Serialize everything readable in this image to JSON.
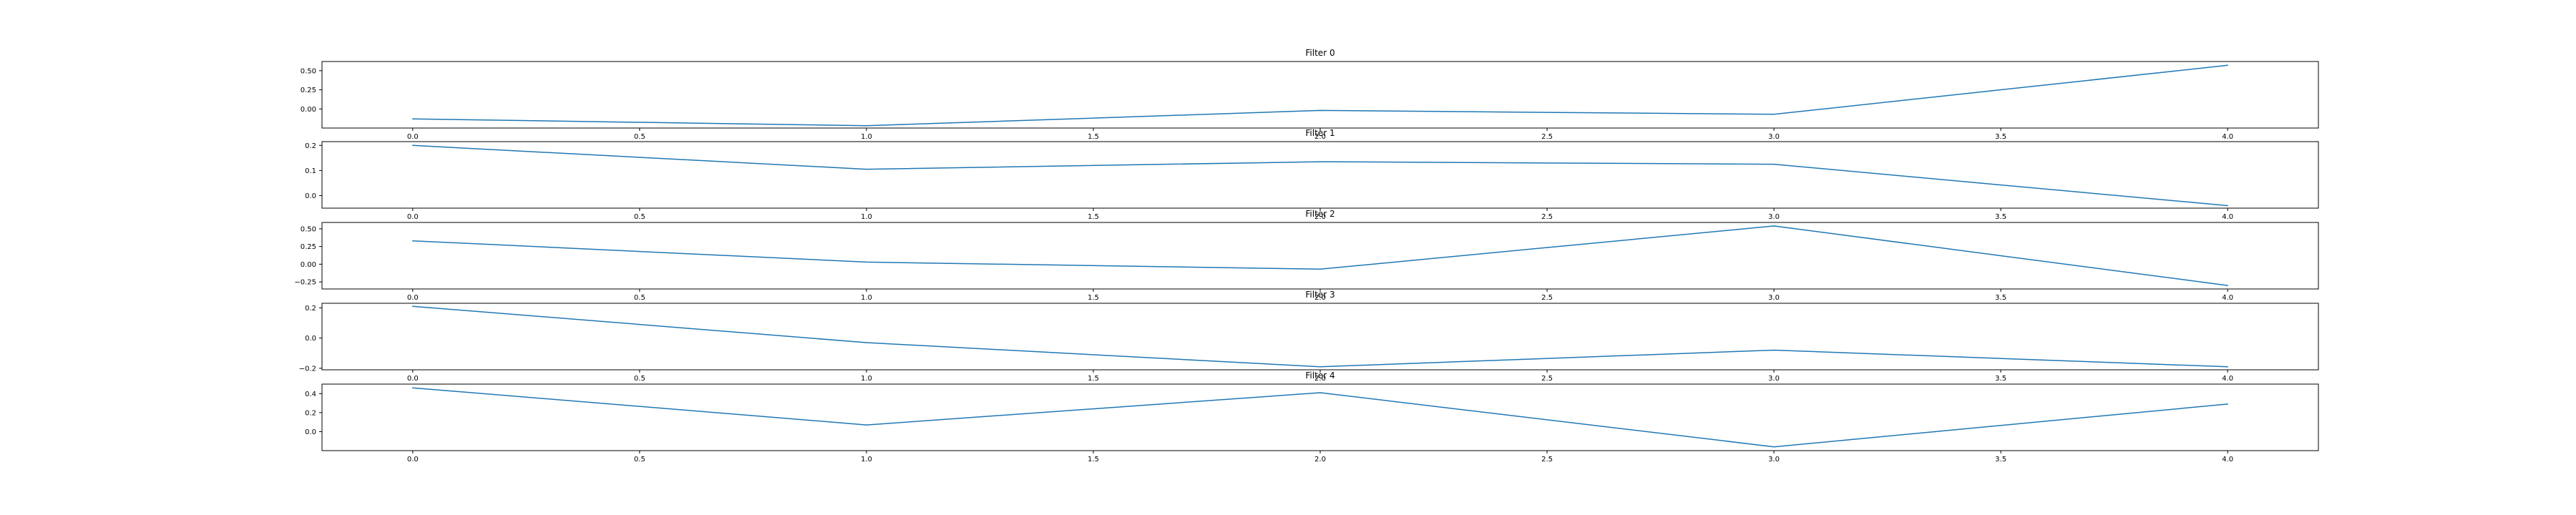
{
  "chart_data": [
    {
      "type": "line",
      "title": "Filter 0",
      "x": [
        0,
        1,
        2,
        3,
        4
      ],
      "series": [
        {
          "values": [
            -0.13,
            -0.22,
            -0.02,
            -0.07,
            0.57
          ]
        }
      ],
      "color": "#1f77b4",
      "xlim": [
        -0.2,
        4.2
      ],
      "ylim": [
        -0.25,
        0.62
      ],
      "xticks": [
        "0.0",
        "0.5",
        "1.0",
        "1.5",
        "2.0",
        "2.5",
        "3.0",
        "3.5",
        "4.0"
      ],
      "yticks": [
        "0.50",
        "0.25",
        "0.00"
      ],
      "grid": false
    },
    {
      "type": "line",
      "title": "Filter 1",
      "x": [
        0,
        1,
        2,
        3,
        4
      ],
      "series": [
        {
          "values": [
            0.2,
            0.105,
            0.135,
            0.125,
            -0.04
          ]
        }
      ],
      "color": "#1f77b4",
      "xlim": [
        -0.2,
        4.2
      ],
      "ylim": [
        -0.05,
        0.215
      ],
      "xticks": [
        "0.0",
        "0.5",
        "1.0",
        "1.5",
        "2.0",
        "2.5",
        "3.0",
        "3.5",
        "4.0"
      ],
      "yticks": [
        "0.2",
        "0.1",
        "0.0"
      ],
      "grid": false
    },
    {
      "type": "line",
      "title": "Filter 2",
      "x": [
        0,
        1,
        2,
        3,
        4
      ],
      "series": [
        {
          "values": [
            0.33,
            0.03,
            -0.07,
            0.54,
            -0.3
          ]
        }
      ],
      "color": "#1f77b4",
      "xlim": [
        -0.2,
        4.2
      ],
      "ylim": [
        -0.35,
        0.59
      ],
      "xticks": [
        "0.0",
        "0.5",
        "1.0",
        "1.5",
        "2.0",
        "2.5",
        "3.0",
        "3.5",
        "4.0"
      ],
      "yticks": [
        "0.50",
        "0.25",
        "0.00",
        "−0.25"
      ],
      "grid": false
    },
    {
      "type": "line",
      "title": "Filter 3",
      "x": [
        0,
        1,
        2,
        3,
        4
      ],
      "series": [
        {
          "values": [
            0.21,
            -0.03,
            -0.19,
            -0.08,
            -0.19
          ]
        }
      ],
      "color": "#1f77b4",
      "xlim": [
        -0.2,
        4.2
      ],
      "ylim": [
        -0.21,
        0.23
      ],
      "xticks": [
        "0.0",
        "0.5",
        "1.0",
        "1.5",
        "2.0",
        "2.5",
        "3.0",
        "3.5",
        "4.0"
      ],
      "yticks": [
        "0.2",
        "0.0",
        "−0.2"
      ],
      "grid": false
    },
    {
      "type": "line",
      "title": "Filter 4",
      "x": [
        0,
        1,
        2,
        3,
        4
      ],
      "series": [
        {
          "values": [
            0.46,
            0.07,
            0.41,
            -0.16,
            0.29
          ]
        }
      ],
      "color": "#1f77b4",
      "xlim": [
        -0.2,
        4.2
      ],
      "ylim": [
        -0.2,
        0.5
      ],
      "xticks": [
        "0.0",
        "0.5",
        "1.0",
        "1.5",
        "2.0",
        "2.5",
        "3.0",
        "3.5",
        "4.0"
      ],
      "yticks": [
        "0.4",
        "0.2",
        "0.0"
      ],
      "grid": false
    }
  ]
}
